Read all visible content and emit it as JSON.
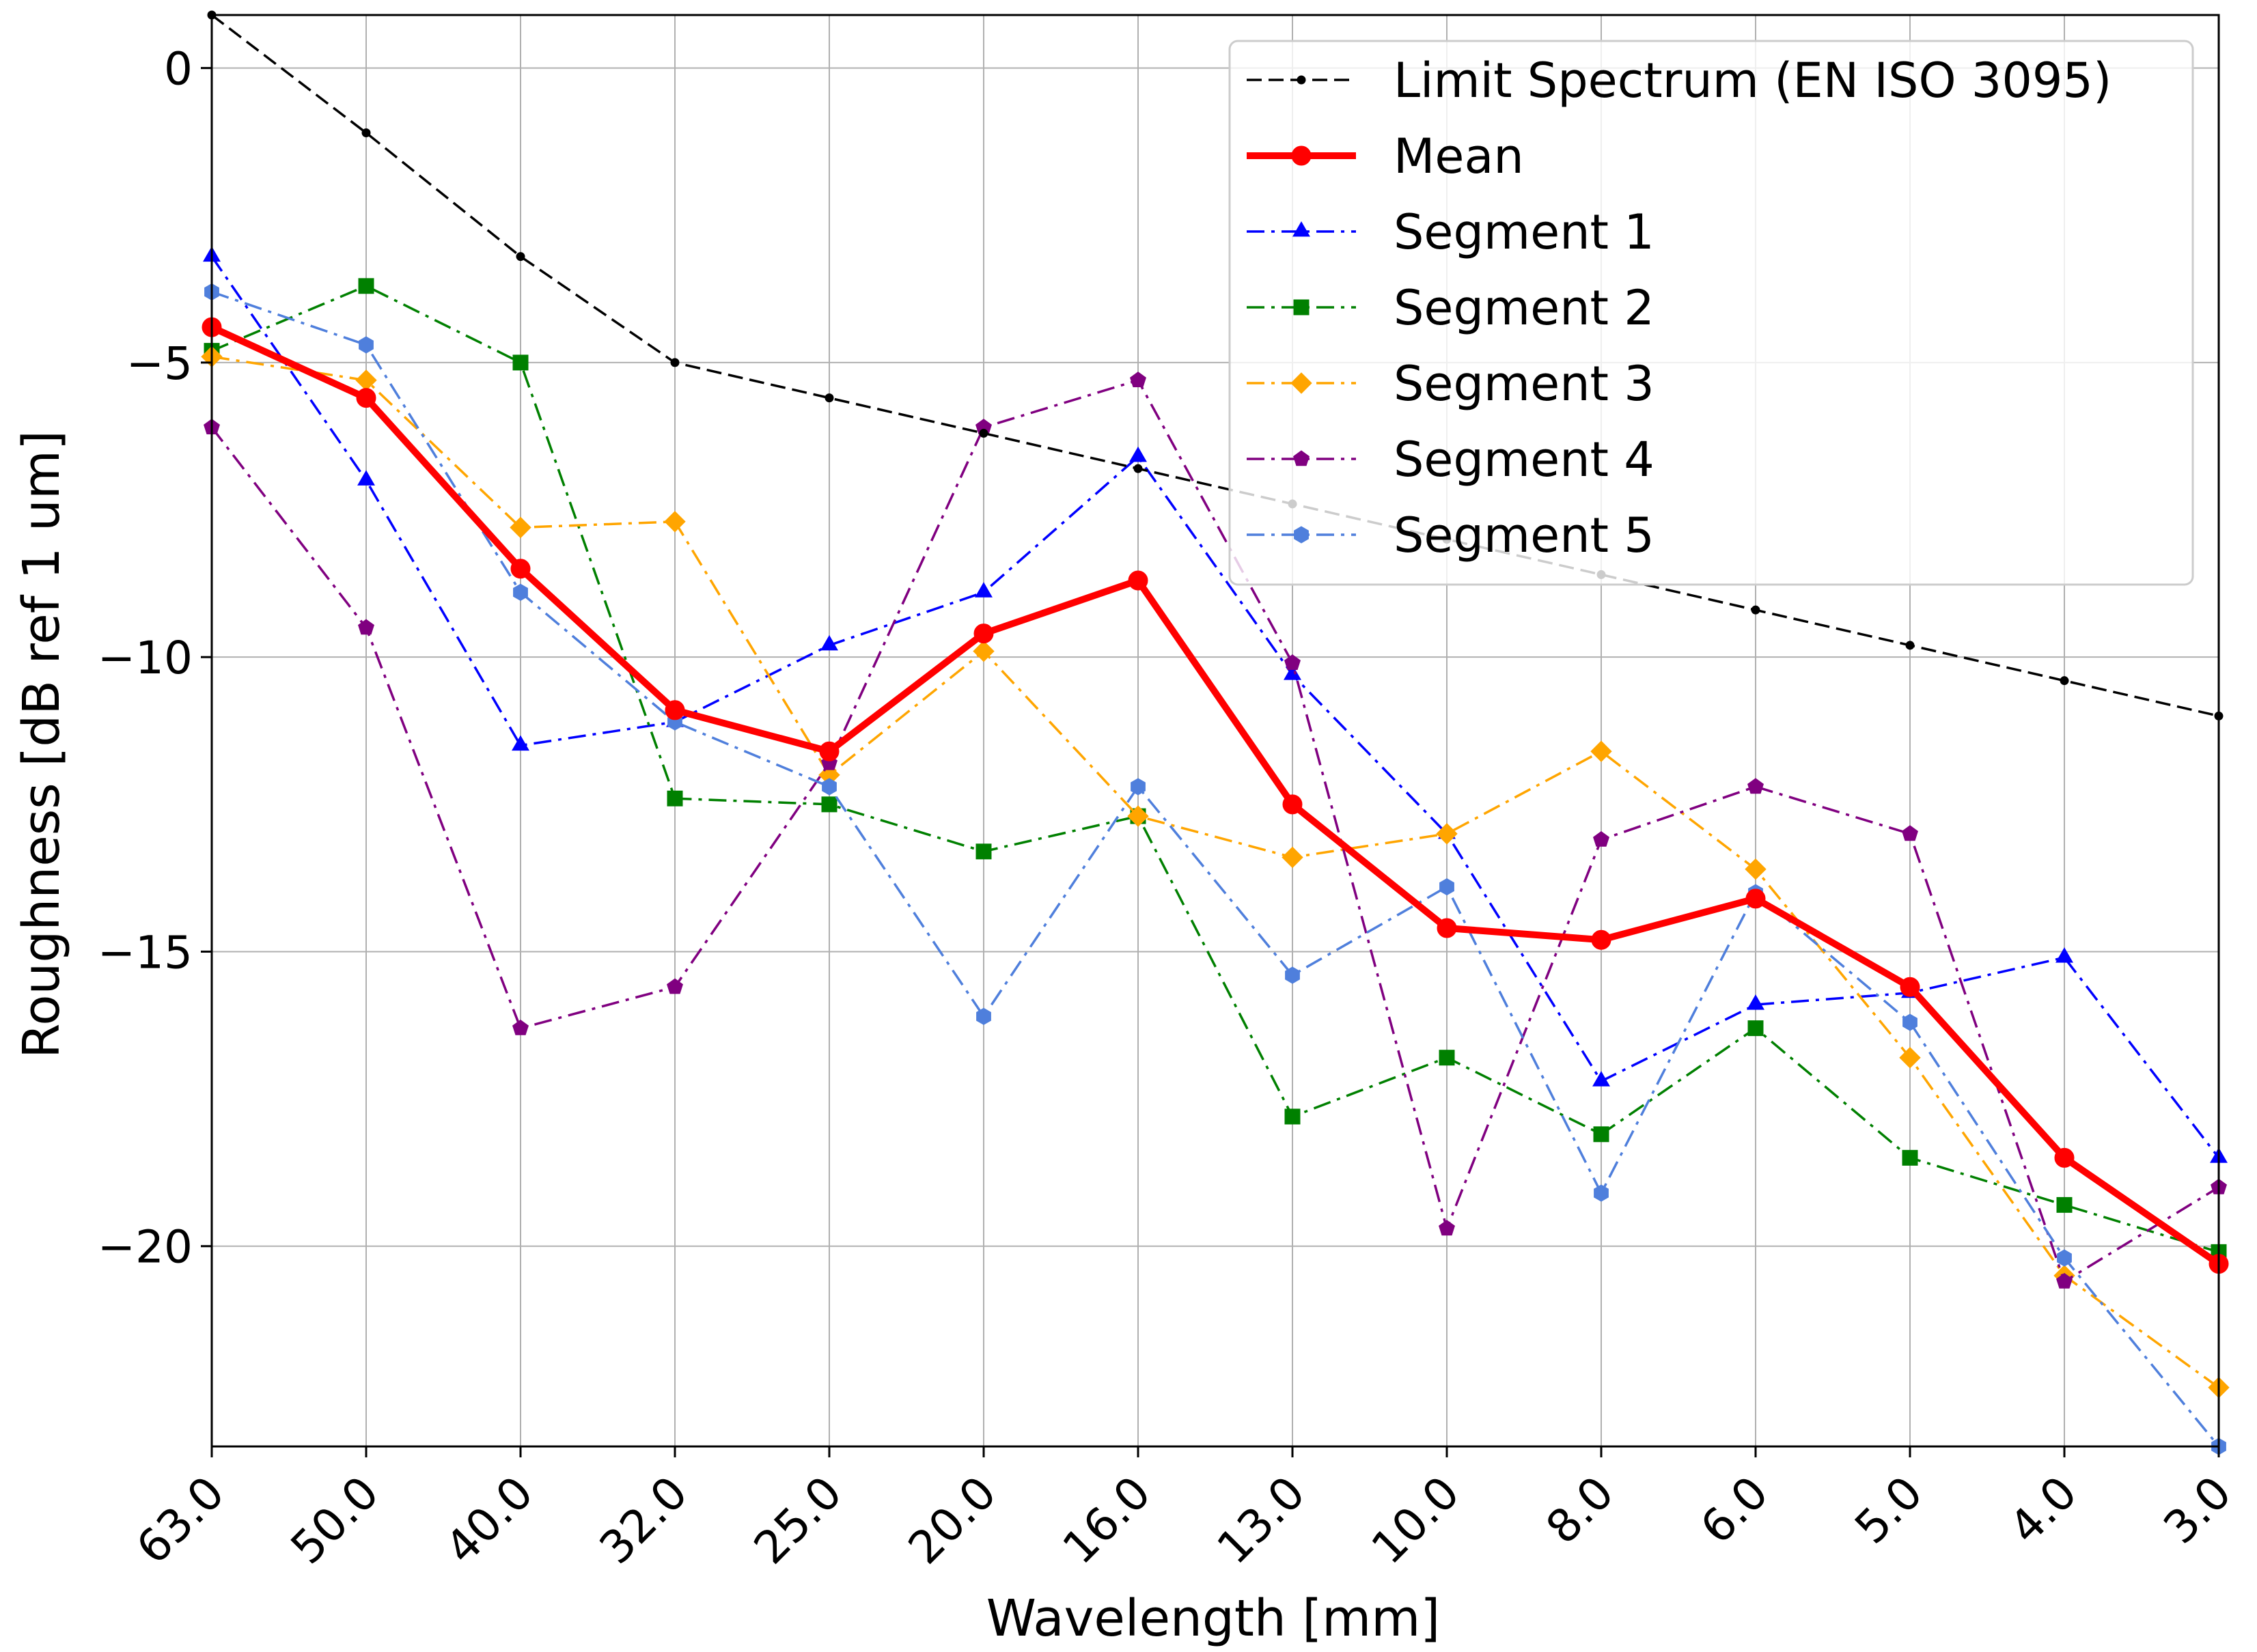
{
  "chart_data": {
    "type": "line",
    "title": "",
    "xlabel": "Wavelength [mm]",
    "ylabel": "Roughness [dB ref 1 um]",
    "categories": [
      "63.0",
      "50.0",
      "40.0",
      "32.0",
      "25.0",
      "20.0",
      "16.0",
      "13.0",
      "10.0",
      "8.0",
      "6.0",
      "5.0",
      "4.0",
      "3.0"
    ],
    "ylim": [
      -23.4,
      0.9
    ],
    "yticks": [
      0,
      -5,
      -10,
      -15,
      -20
    ],
    "ytick_labels": [
      "0",
      "−5",
      "−10",
      "−15",
      "−20"
    ],
    "grid": true,
    "legend_position": "top-right",
    "series": [
      {
        "name": "Limit Spectrum (EN ISO 3095)",
        "color": "#000000",
        "dash": "dashed",
        "marker": "dot",
        "width": "thin",
        "values": [
          0.9,
          -1.1,
          -3.2,
          -5.0,
          -5.6,
          -6.2,
          -6.8,
          -7.4,
          -8.0,
          -8.6,
          -9.2,
          -9.8,
          -10.4,
          -11.0
        ]
      },
      {
        "name": "Mean",
        "color": "#ff0000",
        "dash": "solid",
        "marker": "circle",
        "width": "thick",
        "values": [
          -4.4,
          -5.6,
          -8.5,
          -10.9,
          -11.6,
          -9.6,
          -8.7,
          -12.5,
          -14.6,
          -14.8,
          -14.1,
          -15.6,
          -18.5,
          -20.3
        ]
      },
      {
        "name": "Segment 1",
        "color": "#0000ff",
        "dash": "dashdot",
        "marker": "triangle",
        "width": "thin",
        "values": [
          -3.2,
          -7.0,
          -11.5,
          -11.1,
          -9.8,
          -8.9,
          -6.6,
          -10.3,
          -13.0,
          -17.2,
          -15.9,
          -15.7,
          -15.1,
          -18.5
        ]
      },
      {
        "name": "Segment 2",
        "color": "#008000",
        "dash": "dashdot",
        "marker": "square",
        "width": "thin",
        "values": [
          -4.8,
          -3.7,
          -5.0,
          -12.4,
          -12.5,
          -13.3,
          -12.7,
          -17.8,
          -16.8,
          -18.1,
          -16.3,
          -18.5,
          -19.3,
          -20.1
        ]
      },
      {
        "name": "Segment 3",
        "color": "#ffa500",
        "dash": "dashdot",
        "marker": "diamond",
        "width": "thin",
        "values": [
          -4.9,
          -5.3,
          -7.8,
          -7.7,
          -12.0,
          -9.9,
          -12.7,
          -13.4,
          -13.0,
          -11.6,
          -13.6,
          -16.8,
          -20.5,
          -22.4
        ]
      },
      {
        "name": "Segment 4",
        "color": "#800080",
        "dash": "dashdot",
        "marker": "pentagon",
        "width": "thin",
        "values": [
          -6.1,
          -9.5,
          -16.3,
          -15.6,
          -11.8,
          -6.1,
          -5.3,
          -10.1,
          -19.7,
          -13.1,
          -12.2,
          -13.0,
          -20.6,
          -19.0
        ]
      },
      {
        "name": "Segment 5",
        "color": "#4f7fdc",
        "dash": "dashdot",
        "marker": "hexagon",
        "width": "thin",
        "values": [
          -3.8,
          -4.7,
          -8.9,
          -11.1,
          -12.2,
          -16.1,
          -12.2,
          -15.4,
          -13.9,
          -19.1,
          -14.0,
          -16.2,
          -20.2,
          -23.4
        ]
      }
    ]
  }
}
